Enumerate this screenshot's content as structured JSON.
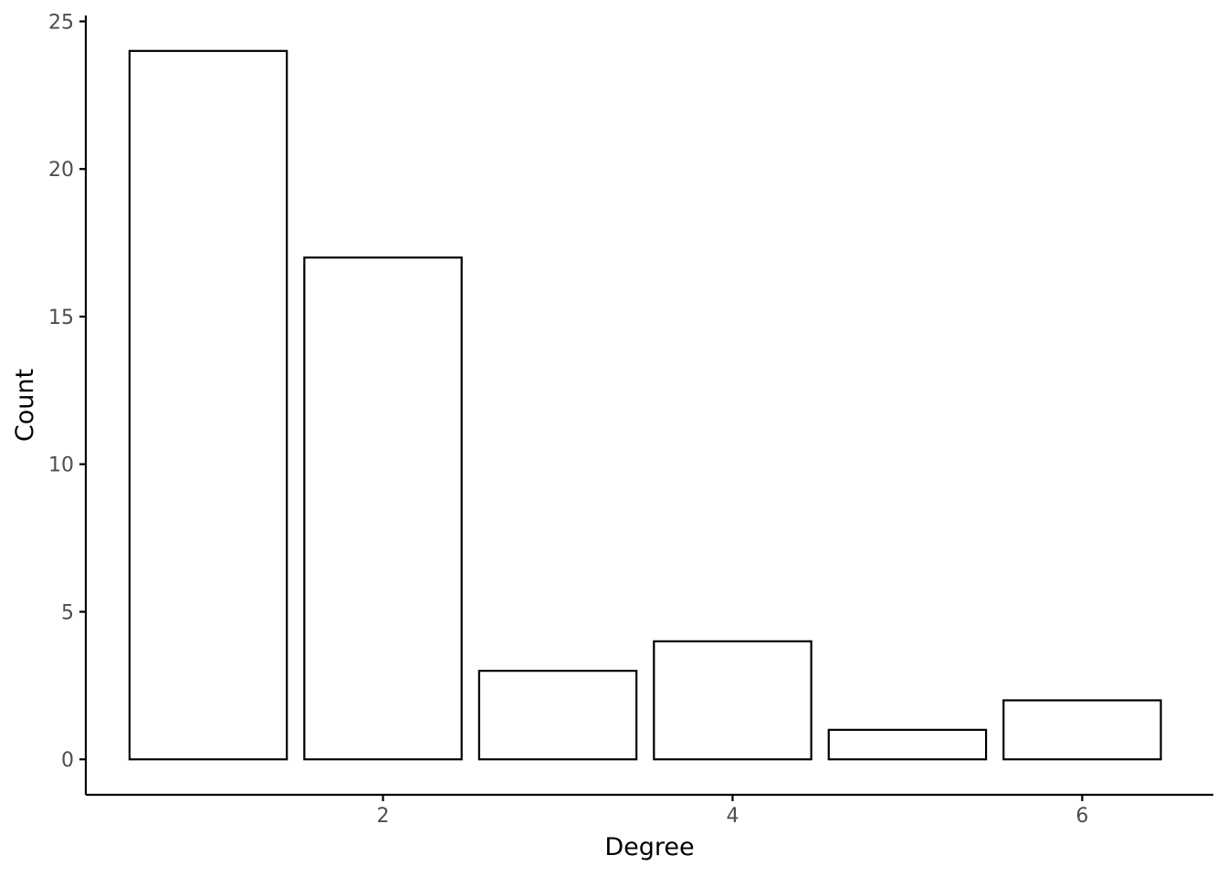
{
  "chart_data": {
    "type": "bar",
    "x": [
      1,
      2,
      3,
      4,
      5,
      6
    ],
    "values": [
      24,
      17,
      3,
      4,
      1,
      2
    ],
    "xlabel": "Degree",
    "ylabel": "Count",
    "xlim": [
      0.3,
      6.75
    ],
    "ylim": [
      -1.2,
      25.2
    ],
    "xticks": [
      2,
      4,
      6
    ],
    "yticks": [
      0,
      5,
      10,
      15,
      20,
      25
    ],
    "grid": false,
    "bar_fill": "#ffffff",
    "bar_stroke": "#000000",
    "tick_label_color": "#4d4d4d"
  }
}
